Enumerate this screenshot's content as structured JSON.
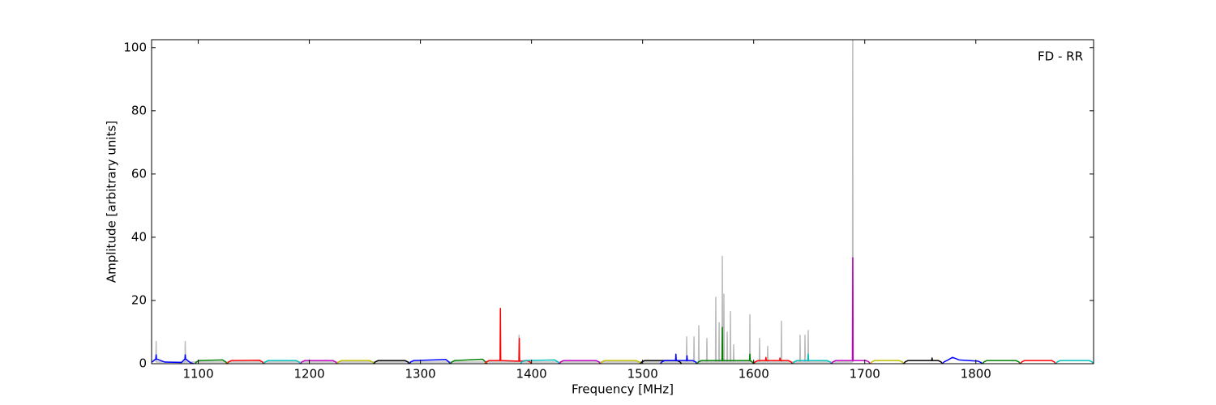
{
  "chart_data": {
    "type": "line",
    "annotation": "FD - RR",
    "xlabel": "Frequency [MHz]",
    "ylabel": "Amplitude [arbitrary units]",
    "xlim": [
      1058,
      1906
    ],
    "ylim": [
      0,
      102.5
    ],
    "xticks": [
      1100,
      1200,
      1300,
      1400,
      1500,
      1600,
      1700,
      1800
    ],
    "yticks": [
      0,
      20,
      40,
      60,
      80,
      100
    ],
    "series": [
      {
        "color": "#bbbbbb",
        "x": [
          1061.8,
          1062.1,
          1062.4,
          1088,
          1088.3,
          1088.6,
          1388.5,
          1388.8,
          1389.1,
          1539.4,
          1539.7,
          1540,
          1546,
          1546.3,
          1546.6,
          1550.3,
          1550.6,
          1550.9,
          1557.6,
          1557.9,
          1558.2,
          1565.6,
          1565.9,
          1566.2,
          1568.6,
          1568.9,
          1569.2,
          1571.5,
          1571.8,
          1572.1,
          1572.9,
          1573.2,
          1573.5,
          1575.9,
          1576.2,
          1576.5,
          1578.8,
          1579.1,
          1579.4,
          1581.7,
          1582,
          1582.3,
          1596.3,
          1596.6,
          1596.9,
          1605,
          1605.3,
          1605.6,
          1612.3,
          1612.6,
          1612.9,
          1624.7,
          1625,
          1625.3,
          1641.5,
          1641.8,
          1642.1,
          1645.9,
          1646.2,
          1646.5,
          1648.8,
          1649.1,
          1649.4,
          1688.9,
          1689.2,
          1689.5
        ],
        "values": [
          0.5,
          7,
          0.5,
          0.5,
          7,
          0.5,
          0.5,
          9,
          0.5,
          0.5,
          8.5,
          0.5,
          0.5,
          8.5,
          0.5,
          0.5,
          12,
          0.5,
          0.5,
          8,
          0.5,
          0.5,
          21,
          0.5,
          0.5,
          13,
          0.5,
          0.5,
          34,
          0.5,
          0.5,
          22,
          0.5,
          0.5,
          10,
          0.5,
          0.5,
          16.5,
          0.5,
          0.5,
          6,
          0.5,
          0.5,
          15.5,
          0.5,
          0.5,
          8,
          0.5,
          0.5,
          5.5,
          0.5,
          0.5,
          13.5,
          0.5,
          0.5,
          9,
          0.5,
          0.5,
          9,
          0.5,
          0.5,
          10.5,
          0.5,
          0.5,
          105,
          0.5
        ]
      },
      {
        "color": "#0000ff",
        "x": [
          1058.5,
          1060,
          1061.8,
          1062.1,
          1062.4,
          1070,
          1085,
          1088,
          1088.3,
          1088.6,
          1093,
          1096
        ],
        "values": [
          0.5,
          1,
          1.5,
          2.8,
          1.5,
          0.5,
          0.4,
          1.5,
          2.8,
          1.5,
          0.3,
          0
        ]
      },
      {
        "color": "#008000",
        "x": [
          1097,
          1098.5,
          1101,
          1122,
          1124.5,
          1126
        ],
        "values": [
          0,
          0.6,
          1,
          1.2,
          0.6,
          0
        ]
      },
      {
        "color": "#ff0000",
        "x": [
          1126,
          1127.5,
          1130,
          1155,
          1157.5,
          1159
        ],
        "values": [
          0,
          0.6,
          1,
          1.1,
          0.6,
          0
        ]
      },
      {
        "color": "#00bfbf",
        "x": [
          1159,
          1160.5,
          1163,
          1188,
          1190.5,
          1192
        ],
        "values": [
          0,
          0.6,
          1,
          1,
          0.6,
          0
        ]
      },
      {
        "color": "#bf00bf",
        "x": [
          1192,
          1193.5,
          1196,
          1221,
          1223.5,
          1225
        ],
        "values": [
          0,
          0.6,
          1,
          1,
          0.6,
          0
        ]
      },
      {
        "color": "#bfbf00",
        "x": [
          1225,
          1226.5,
          1229,
          1254,
          1256.5,
          1258
        ],
        "values": [
          0,
          0.6,
          1,
          1,
          0.6,
          0
        ]
      },
      {
        "color": "#000000",
        "x": [
          1258,
          1259.5,
          1262,
          1286,
          1288.5,
          1290
        ],
        "values": [
          0,
          0.6,
          1,
          1,
          0.6,
          0
        ]
      },
      {
        "color": "#0000ff",
        "x": [
          1290,
          1291.5,
          1294,
          1323,
          1325.5,
          1327
        ],
        "values": [
          0,
          0.6,
          1,
          1.3,
          0.6,
          0
        ]
      },
      {
        "color": "#008000",
        "x": [
          1327,
          1328.5,
          1331,
          1356,
          1358.5,
          1360
        ],
        "values": [
          0,
          0.6,
          1,
          1.4,
          0.6,
          0
        ]
      },
      {
        "color": "#ff0000",
        "x": [
          1358,
          1359.5,
          1362,
          1371.7,
          1372,
          1372.3,
          1388.7,
          1389,
          1389.3,
          1396,
          1398.5,
          1400
        ],
        "values": [
          0,
          0.6,
          1,
          1,
          17.5,
          1,
          0.8,
          8,
          0.8,
          1,
          0.6,
          0
        ]
      },
      {
        "color": "#00bfbf",
        "x": [
          1390,
          1391.5,
          1394,
          1421,
          1423.5,
          1425
        ],
        "values": [
          0,
          0.6,
          1,
          1.2,
          0.6,
          0
        ]
      },
      {
        "color": "#bf00bf",
        "x": [
          1425,
          1426.5,
          1429,
          1458,
          1460.5,
          1462
        ],
        "values": [
          0,
          0.6,
          1,
          1,
          0.6,
          0
        ]
      },
      {
        "color": "#bfbf00",
        "x": [
          1462,
          1463.5,
          1466,
          1494,
          1496.5,
          1498
        ],
        "values": [
          0,
          0.6,
          1,
          1,
          0.6,
          0
        ]
      },
      {
        "color": "#000000",
        "x": [
          1498,
          1499.5,
          1502,
          1531,
          1533.5,
          1535
        ],
        "values": [
          0,
          0.6,
          1,
          1,
          0.6,
          0
        ]
      },
      {
        "color": "#0000ff",
        "x": [
          1516,
          1517.5,
          1520,
          1529.7,
          1530,
          1530.3,
          1539.7,
          1540,
          1540.3,
          1545,
          1547.5,
          1549
        ],
        "values": [
          0,
          0.6,
          1,
          1,
          3,
          1,
          1,
          2.5,
          1,
          1,
          0.6,
          0
        ]
      },
      {
        "color": "#008000",
        "x": [
          1549,
          1550.5,
          1553,
          1571.5,
          1571.8,
          1572.1,
          1590,
          1596.3,
          1596.6,
          1596.9,
          1598.5,
          1600
        ],
        "values": [
          0,
          0.6,
          1,
          1,
          11.5,
          1,
          1,
          1,
          3,
          1,
          0.6,
          0
        ]
      },
      {
        "color": "#ff0000",
        "x": [
          1600,
          1601.5,
          1604,
          1610.7,
          1611,
          1611.3,
          1623.4,
          1623.7,
          1624,
          1631,
          1633.5,
          1635
        ],
        "values": [
          0,
          0.6,
          1,
          1,
          2,
          1,
          1,
          1.8,
          1,
          1,
          0.6,
          0
        ]
      },
      {
        "color": "#00bfbf",
        "x": [
          1635,
          1636.5,
          1639,
          1648.8,
          1649.1,
          1649.4,
          1666,
          1668.5,
          1670
        ],
        "values": [
          0,
          0.6,
          1,
          1,
          3,
          1,
          1,
          0.6,
          0
        ]
      },
      {
        "color": "#bf00bf",
        "x": [
          1670,
          1671.5,
          1674,
          1688.9,
          1689.2,
          1689.5,
          1701,
          1703.5,
          1705
        ],
        "values": [
          0,
          0.6,
          1,
          1,
          33.5,
          1,
          1,
          0.6,
          0
        ]
      },
      {
        "color": "#bfbf00",
        "x": [
          1705,
          1706.5,
          1709,
          1731,
          1733.5,
          1735
        ],
        "values": [
          0,
          0.6,
          1,
          1,
          0.6,
          0
        ]
      },
      {
        "color": "#000000",
        "x": [
          1735,
          1736.5,
          1739,
          1760.3,
          1760.6,
          1760.9,
          1766,
          1768.5,
          1770
        ],
        "values": [
          0,
          0.6,
          1,
          1,
          1.8,
          1,
          1,
          0.6,
          0
        ]
      },
      {
        "color": "#0000ff",
        "x": [
          1770,
          1771.5,
          1774,
          1779,
          1785,
          1802,
          1804.5,
          1806
        ],
        "values": [
          0,
          0.6,
          1,
          2,
          1.2,
          0.8,
          0.4,
          0
        ]
      },
      {
        "color": "#008000",
        "x": [
          1806,
          1807.5,
          1810,
          1836,
          1838.5,
          1840
        ],
        "values": [
          0,
          0.6,
          1,
          1,
          0.6,
          0
        ]
      },
      {
        "color": "#ff0000",
        "x": [
          1840,
          1841.5,
          1844,
          1868,
          1870.5,
          1872
        ],
        "values": [
          0,
          0.6,
          1,
          1,
          0.6,
          0
        ]
      },
      {
        "color": "#00bfbf",
        "x": [
          1872,
          1873.5,
          1876,
          1902,
          1904.5,
          1906
        ],
        "values": [
          0,
          0.6,
          1,
          1,
          0.6,
          0
        ]
      }
    ]
  }
}
